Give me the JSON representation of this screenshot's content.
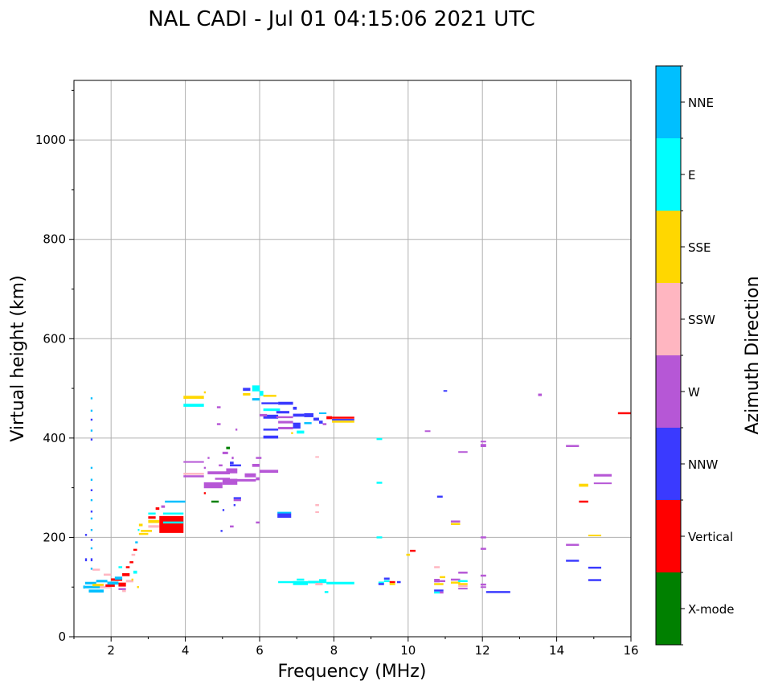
{
  "chart_data": {
    "type": "scatter",
    "title": "NAL CADI - Jul 01 04:15:06 2021 UTC",
    "xlabel": "Frequency (MHz)",
    "ylabel": "Virtual height (km)",
    "xlim": [
      1,
      16
    ],
    "ylim": [
      0,
      1120
    ],
    "xticks": [
      2,
      4,
      6,
      8,
      10,
      12,
      14,
      16
    ],
    "yticks": [
      0,
      200,
      400,
      600,
      800,
      1000
    ],
    "grid": true,
    "colorbar": {
      "label": "Azimuth Direction",
      "categories": [
        "X-mode",
        "Vertical",
        "NNW",
        "W",
        "SSW",
        "SSE",
        "E",
        "NNE"
      ],
      "colors": [
        "#008000",
        "#ff0000",
        "#3a3aff",
        "#b657d6",
        "#ffb6c1",
        "#ffd700",
        "#00ffff",
        "#00bfff"
      ]
    },
    "point_fields": [
      "freq_start_MHz",
      "freq_end_MHz",
      "height_km",
      "height_extent_km",
      "category_index"
    ],
    "points": [
      [
        1.45,
        1.5,
        480,
        4,
        7
      ],
      [
        1.45,
        1.5,
        455,
        4,
        7
      ],
      [
        1.45,
        1.5,
        437,
        4,
        2
      ],
      [
        1.45,
        1.5,
        415,
        4,
        7
      ],
      [
        1.45,
        1.5,
        397,
        4,
        2
      ],
      [
        1.45,
        1.5,
        340,
        4,
        7
      ],
      [
        1.45,
        1.5,
        316,
        4,
        7
      ],
      [
        1.45,
        1.5,
        295,
        4,
        2
      ],
      [
        1.45,
        1.5,
        275,
        4,
        7
      ],
      [
        1.45,
        1.5,
        252,
        4,
        2
      ],
      [
        1.45,
        1.5,
        238,
        4,
        7
      ],
      [
        1.45,
        1.5,
        215,
        4,
        7
      ],
      [
        1.45,
        1.5,
        195,
        4,
        2
      ],
      [
        1.45,
        1.5,
        178,
        4,
        7
      ],
      [
        1.45,
        1.5,
        155,
        6,
        2
      ],
      [
        1.45,
        1.5,
        137,
        4,
        7
      ],
      [
        1.3,
        1.35,
        205,
        4,
        2
      ],
      [
        1.3,
        1.35,
        155,
        6,
        2
      ],
      [
        1.25,
        1.3,
        100,
        6,
        7
      ],
      [
        1.3,
        1.6,
        108,
        5,
        7
      ],
      [
        1.3,
        1.7,
        100,
        5,
        7
      ],
      [
        1.4,
        1.8,
        92,
        6,
        7
      ],
      [
        1.5,
        1.8,
        104,
        5,
        5
      ],
      [
        1.6,
        1.9,
        112,
        5,
        7
      ],
      [
        1.7,
        2.0,
        100,
        5,
        4
      ],
      [
        1.5,
        1.7,
        135,
        4,
        4
      ],
      [
        1.8,
        2.0,
        125,
        4,
        4
      ],
      [
        1.85,
        2.1,
        103,
        5,
        1
      ],
      [
        1.9,
        2.2,
        108,
        6,
        7
      ],
      [
        2.0,
        2.3,
        115,
        5,
        1
      ],
      [
        2.1,
        2.3,
        118,
        6,
        7
      ],
      [
        2.2,
        2.4,
        105,
        8,
        1
      ],
      [
        2.3,
        2.5,
        125,
        6,
        1
      ],
      [
        2.4,
        2.5,
        140,
        4,
        1
      ],
      [
        2.2,
        2.4,
        96,
        4,
        3
      ],
      [
        2.3,
        2.4,
        92,
        4,
        4
      ],
      [
        2.4,
        2.6,
        112,
        5,
        4
      ],
      [
        2.5,
        2.6,
        150,
        4,
        1
      ],
      [
        2.55,
        2.65,
        165,
        4,
        4
      ],
      [
        2.6,
        2.7,
        175,
        4,
        1
      ],
      [
        2.65,
        2.72,
        190,
        4,
        7
      ],
      [
        2.6,
        2.7,
        130,
        6,
        6
      ],
      [
        2.2,
        2.3,
        140,
        4,
        6
      ],
      [
        2.7,
        2.75,
        100,
        4,
        5
      ],
      [
        2.55,
        2.6,
        115,
        4,
        5
      ],
      [
        2.72,
        2.75,
        215,
        4,
        6
      ],
      [
        2.75,
        3.0,
        207,
        4,
        5
      ],
      [
        2.75,
        2.85,
        225,
        5,
        5
      ],
      [
        2.8,
        3.1,
        213,
        4,
        5
      ],
      [
        3.0,
        3.3,
        232,
        6,
        5
      ],
      [
        3.0,
        3.2,
        240,
        5,
        1
      ],
      [
        3.0,
        3.2,
        248,
        4,
        6
      ],
      [
        3.0,
        3.3,
        222,
        5,
        4
      ],
      [
        3.2,
        3.3,
        258,
        5,
        1
      ],
      [
        3.3,
        3.95,
        226,
        34,
        1
      ],
      [
        3.4,
        3.95,
        230,
        4,
        6
      ],
      [
        3.4,
        3.95,
        248,
        4,
        6
      ],
      [
        3.45,
        4.0,
        272,
        4,
        7
      ],
      [
        3.35,
        3.45,
        262,
        5,
        3
      ],
      [
        3.95,
        4.5,
        482,
        6,
        5
      ],
      [
        3.95,
        4.5,
        466,
        6,
        6
      ],
      [
        4.5,
        4.55,
        492,
        4,
        5
      ],
      [
        3.95,
        4.5,
        352,
        3,
        3
      ],
      [
        3.95,
        4.5,
        328,
        4,
        4
      ],
      [
        3.95,
        4.5,
        323,
        4,
        3
      ],
      [
        4.5,
        4.55,
        340,
        4,
        3
      ],
      [
        4.5,
        5.0,
        305,
        12,
        3
      ],
      [
        4.6,
        5.2,
        330,
        6,
        3
      ],
      [
        4.8,
        5.2,
        318,
        4,
        3
      ],
      [
        5.0,
        5.4,
        312,
        12,
        3
      ],
      [
        5.3,
        5.9,
        315,
        5,
        3
      ],
      [
        5.1,
        5.4,
        334,
        10,
        3
      ],
      [
        5.6,
        5.9,
        325,
        8,
        3
      ],
      [
        5.9,
        6.0,
        318,
        6,
        3
      ],
      [
        6.0,
        6.5,
        333,
        6,
        3
      ],
      [
        5.8,
        6.0,
        345,
        6,
        3
      ],
      [
        5.1,
        5.2,
        380,
        5,
        0
      ],
      [
        5.0,
        5.15,
        370,
        5,
        3
      ],
      [
        5.25,
        5.3,
        360,
        5,
        3
      ],
      [
        5.2,
        5.3,
        350,
        5,
        2
      ],
      [
        5.2,
        5.5,
        345,
        4,
        2
      ],
      [
        4.9,
        5.0,
        345,
        4,
        3
      ],
      [
        4.6,
        4.65,
        360,
        4,
        3
      ],
      [
        4.85,
        4.95,
        462,
        4,
        3
      ],
      [
        4.85,
        4.95,
        428,
        4,
        3
      ],
      [
        5.35,
        5.4,
        417,
        4,
        3
      ],
      [
        4.7,
        4.9,
        272,
        4,
        0
      ],
      [
        5.3,
        5.5,
        279,
        4,
        2
      ],
      [
        5.3,
        5.5,
        275,
        4,
        3
      ],
      [
        4.95,
        5.0,
        213,
        4,
        2
      ],
      [
        5.2,
        5.3,
        222,
        4,
        3
      ],
      [
        5.0,
        5.05,
        255,
        4,
        2
      ],
      [
        5.3,
        5.35,
        265,
        4,
        2
      ],
      [
        4.5,
        4.55,
        289,
        4,
        1
      ],
      [
        5.9,
        6.0,
        230,
        4,
        3
      ],
      [
        5.9,
        6.05,
        360,
        4,
        3
      ],
      [
        5.55,
        5.75,
        498,
        6,
        2
      ],
      [
        5.55,
        5.75,
        488,
        5,
        5
      ],
      [
        5.8,
        6.0,
        500,
        12,
        6
      ],
      [
        6.0,
        6.1,
        490,
        10,
        6
      ],
      [
        5.8,
        6.0,
        478,
        5,
        7
      ],
      [
        6.1,
        6.45,
        485,
        4,
        5
      ],
      [
        6.05,
        6.5,
        470,
        4,
        2
      ],
      [
        6.1,
        6.55,
        457,
        5,
        6
      ],
      [
        6.1,
        6.5,
        443,
        8,
        2
      ],
      [
        6.0,
        6.2,
        446,
        5,
        3
      ],
      [
        6.45,
        6.8,
        452,
        5,
        2
      ],
      [
        6.45,
        6.9,
        442,
        4,
        3
      ],
      [
        6.5,
        6.9,
        432,
        5,
        3
      ],
      [
        6.5,
        6.9,
        420,
        5,
        3
      ],
      [
        6.1,
        6.5,
        417,
        4,
        2
      ],
      [
        6.5,
        6.9,
        470,
        6,
        2
      ],
      [
        6.9,
        7.0,
        460,
        6,
        2
      ],
      [
        6.9,
        7.2,
        446,
        6,
        2
      ],
      [
        6.9,
        7.1,
        425,
        12,
        2
      ],
      [
        7.0,
        7.2,
        412,
        6,
        6
      ],
      [
        7.2,
        7.45,
        446,
        8,
        2
      ],
      [
        7.45,
        7.6,
        438,
        6,
        2
      ],
      [
        7.2,
        7.4,
        430,
        4,
        7
      ],
      [
        7.6,
        7.8,
        450,
        3,
        7
      ],
      [
        7.6,
        7.7,
        432,
        6,
        2
      ],
      [
        7.8,
        7.95,
        441,
        6,
        1
      ],
      [
        7.7,
        7.8,
        428,
        4,
        3
      ],
      [
        6.1,
        6.5,
        402,
        6,
        2
      ],
      [
        6.85,
        6.9,
        410,
        4,
        5
      ],
      [
        7.95,
        8.55,
        441,
        4,
        1
      ],
      [
        7.95,
        8.55,
        437,
        3,
        2
      ],
      [
        7.95,
        8.55,
        433,
        4,
        5
      ],
      [
        6.48,
        6.85,
        244,
        9,
        2
      ],
      [
        6.48,
        6.85,
        250,
        3,
        7
      ],
      [
        7.5,
        7.6,
        362,
        3,
        4
      ],
      [
        7.5,
        7.6,
        265,
        4,
        4
      ],
      [
        7.5,
        7.6,
        251,
        3,
        4
      ],
      [
        6.5,
        7.0,
        110,
        4,
        6
      ],
      [
        6.9,
        7.3,
        108,
        8,
        6
      ],
      [
        7.3,
        7.6,
        110,
        5,
        6
      ],
      [
        7.6,
        7.8,
        112,
        8,
        6
      ],
      [
        7.8,
        8.55,
        108,
        5,
        6
      ],
      [
        7.5,
        7.7,
        106,
        5,
        4
      ],
      [
        7.75,
        7.85,
        90,
        4,
        6
      ],
      [
        7.0,
        7.2,
        115,
        4,
        6
      ],
      [
        9.15,
        9.3,
        398,
        4,
        6
      ],
      [
        9.15,
        9.3,
        310,
        4,
        6
      ],
      [
        9.15,
        9.3,
        200,
        4,
        6
      ],
      [
        9.2,
        9.35,
        109,
        4,
        6
      ],
      [
        9.2,
        9.35,
        106,
        4,
        2
      ],
      [
        9.35,
        9.5,
        117,
        4,
        2
      ],
      [
        9.35,
        9.5,
        112,
        4,
        6
      ],
      [
        9.5,
        9.65,
        110,
        4,
        1
      ],
      [
        9.5,
        9.65,
        106,
        4,
        5
      ],
      [
        9.7,
        9.8,
        110,
        4,
        2
      ],
      [
        9.95,
        10.05,
        165,
        4,
        5
      ],
      [
        10.05,
        10.2,
        173,
        4,
        1
      ],
      [
        10.45,
        10.6,
        414,
        3,
        3
      ],
      [
        10.78,
        10.93,
        282,
        4,
        2
      ],
      [
        10.95,
        11.05,
        495,
        3,
        2
      ],
      [
        10.7,
        10.85,
        140,
        4,
        4
      ],
      [
        10.7,
        10.85,
        113,
        7,
        3
      ],
      [
        10.7,
        10.95,
        106,
        4,
        5
      ],
      [
        10.7,
        10.95,
        93,
        4,
        2
      ],
      [
        10.7,
        10.85,
        89,
        4,
        6
      ],
      [
        10.85,
        10.95,
        89,
        4,
        3
      ],
      [
        10.85,
        11.0,
        120,
        4,
        5
      ],
      [
        10.85,
        11.0,
        112,
        4,
        3
      ],
      [
        11.15,
        11.4,
        232,
        4,
        3
      ],
      [
        11.15,
        11.4,
        227,
        4,
        5
      ],
      [
        11.35,
        11.6,
        372,
        3,
        3
      ],
      [
        11.15,
        11.4,
        115,
        4,
        3
      ],
      [
        11.15,
        11.4,
        109,
        4,
        5
      ],
      [
        11.35,
        11.6,
        129,
        4,
        3
      ],
      [
        11.35,
        11.6,
        112,
        4,
        6
      ],
      [
        11.35,
        11.6,
        106,
        4,
        5
      ],
      [
        11.35,
        11.6,
        102,
        4,
        4
      ],
      [
        11.35,
        11.6,
        97,
        3,
        3
      ],
      [
        11.95,
        12.1,
        393,
        3,
        3
      ],
      [
        11.95,
        12.1,
        385,
        6,
        3
      ],
      [
        11.95,
        12.1,
        200,
        4,
        3
      ],
      [
        11.95,
        12.1,
        177,
        4,
        3
      ],
      [
        11.95,
        12.1,
        123,
        4,
        3
      ],
      [
        11.95,
        12.1,
        105,
        4,
        3
      ],
      [
        11.95,
        12.1,
        100,
        3,
        3
      ],
      [
        12.1,
        12.75,
        90,
        4,
        2
      ],
      [
        13.5,
        13.6,
        487,
        5,
        3
      ],
      [
        14.25,
        14.6,
        384,
        4,
        3
      ],
      [
        14.6,
        14.85,
        305,
        6,
        5
      ],
      [
        14.6,
        14.85,
        272,
        4,
        1
      ],
      [
        15.0,
        15.48,
        325,
        5,
        3
      ],
      [
        15.0,
        15.48,
        309,
        3,
        3
      ],
      [
        14.85,
        15.2,
        204,
        3,
        5
      ],
      [
        14.25,
        14.6,
        185,
        4,
        3
      ],
      [
        14.25,
        14.6,
        153,
        4,
        2
      ],
      [
        14.85,
        15.2,
        139,
        4,
        2
      ],
      [
        14.85,
        15.2,
        114,
        4,
        2
      ],
      [
        15.65,
        16.0,
        450,
        4,
        1
      ]
    ]
  }
}
